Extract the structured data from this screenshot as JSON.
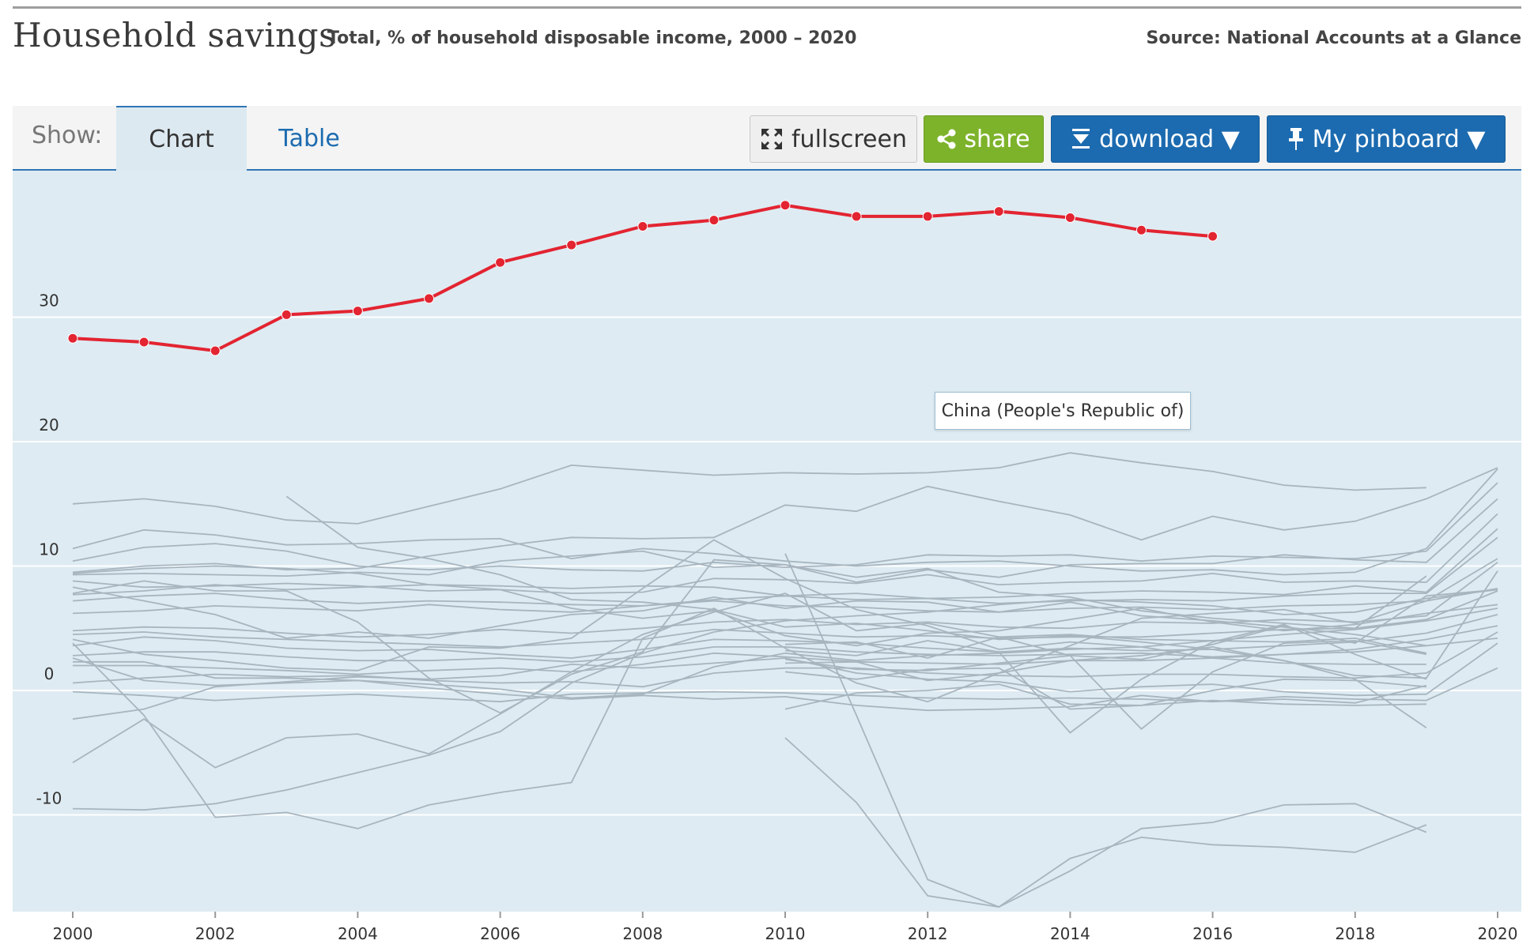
{
  "header": {
    "title": "Household savings",
    "subtitle": "Total, % of household disposable income, 2000 – 2020",
    "source": "Source: National Accounts at a Glance"
  },
  "toolbar": {
    "show_label": "Show:",
    "tabs": [
      {
        "label": "Chart",
        "active": true
      },
      {
        "label": "Table",
        "active": false
      }
    ],
    "fullscreen_label": "fullscreen",
    "share_label": "share",
    "download_label": "download ▼",
    "pinboard_label": "My pinboard ▼",
    "colors": {
      "share": "#7db32b",
      "download": "#1c6bb0",
      "pinboard": "#1c6bb0"
    }
  },
  "tooltip": {
    "text": "China (People's Republic of)"
  },
  "chart_data": {
    "type": "line",
    "title": "Household savings",
    "ylim": [
      -18,
      43
    ],
    "xlim": [
      2000,
      2020
    ],
    "y_ticks": [
      30,
      20,
      10,
      0,
      -10
    ],
    "x_ticks": [
      2000,
      2002,
      2004,
      2006,
      2008,
      2010,
      2012,
      2014,
      2016,
      2018,
      2020
    ],
    "grid": true,
    "highlight_color": "#e32431",
    "background_color": "#deebf2",
    "highlight": {
      "name": "China (People's Republic of)",
      "x": [
        2000,
        2001,
        2002,
        2003,
        2004,
        2005,
        2006,
        2007,
        2008,
        2009,
        2010,
        2011,
        2012,
        2013,
        2014,
        2015,
        2016
      ],
      "values": [
        28.3,
        28.0,
        27.3,
        30.2,
        30.5,
        31.5,
        34.4,
        35.8,
        37.3,
        37.8,
        39.0,
        38.1,
        38.1,
        38.5,
        38.0,
        37.0,
        36.5
      ]
    },
    "series": [
      {
        "values": [
          15.0,
          15.4,
          14.8,
          13.7,
          13.4,
          14.8,
          16.2,
          18.1,
          17.7,
          17.3,
          17.5,
          17.4,
          17.5,
          17.9,
          19.1,
          18.3,
          17.6,
          16.5,
          16.1,
          16.3,
          null
        ]
      },
      {
        "values": [
          11.4,
          12.9,
          12.5,
          11.7,
          11.8,
          12.1,
          12.2,
          10.6,
          11.4,
          11.0,
          10.4,
          10.0,
          10.3,
          10.4,
          10.0,
          9.6,
          9.7,
          9.3,
          9.5,
          11.4,
          17.8
        ]
      },
      {
        "values": [
          10.4,
          11.5,
          11.8,
          11.2,
          10.0,
          9.7,
          10.0,
          9.7,
          9.6,
          10.3,
          9.9,
          10.1,
          10.9,
          10.8,
          10.9,
          10.4,
          10.8,
          10.7,
          10.6,
          11.2,
          16.7
        ]
      },
      {
        "values": [
          9.5,
          10.0,
          10.2,
          9.7,
          9.8,
          10.8,
          11.6,
          12.3,
          12.2,
          12.3,
          14.9,
          14.4,
          16.4,
          15.2,
          14.1,
          12.1,
          14.0,
          12.9,
          13.6,
          15.4,
          17.9
        ]
      },
      {
        "values": [
          9.3,
          9.4,
          9.3,
          9.2,
          9.5,
          9.3,
          10.4,
          10.8,
          11.2,
          9.9,
          10.1,
          8.7,
          9.7,
          9.1,
          10.1,
          10.2,
          10.2,
          10.9,
          10.5,
          10.3,
          15.4
        ]
      },
      {
        "values": [
          8.8,
          8.3,
          8.4,
          8.6,
          8.4,
          8.0,
          8.1,
          7.8,
          7.9,
          9.0,
          8.9,
          8.6,
          9.3,
          8.5,
          8.7,
          8.8,
          9.4,
          8.7,
          8.8,
          8.7,
          14.2
        ]
      },
      {
        "values": [
          7.7,
          8.0,
          8.5,
          8.1,
          8.3,
          8.5,
          8.4,
          8.2,
          8.4,
          8.3,
          7.6,
          7.8,
          7.4,
          7.5,
          7.8,
          8.0,
          7.9,
          7.7,
          8.4,
          7.9,
          13.0
        ]
      },
      {
        "values": [
          7.2,
          7.6,
          7.8,
          7.3,
          7.0,
          7.2,
          7.1,
          6.9,
          6.8,
          7.3,
          7.6,
          7.3,
          7.4,
          7.0,
          7.2,
          7.3,
          7.2,
          7.6,
          7.8,
          7.8,
          12.3
        ]
      },
      {
        "values": [
          6.2,
          6.4,
          6.8,
          6.6,
          6.4,
          6.9,
          6.5,
          6.3,
          6.8,
          7.2,
          6.8,
          6.7,
          6.4,
          6.3,
          6.6,
          6.7,
          6.5,
          6.8,
          6.9,
          7.2,
          10.6
        ]
      },
      {
        "values": [
          4.8,
          5.1,
          5.0,
          4.6,
          4.3,
          4.5,
          4.9,
          4.6,
          5.0,
          5.5,
          5.7,
          5.3,
          5.5,
          5.1,
          5.0,
          5.5,
          5.4,
          5.7,
          5.5,
          6.0,
          10.3
        ]
      },
      {
        "values": [
          4.5,
          4.7,
          4.3,
          4.1,
          3.9,
          3.7,
          3.5,
          3.8,
          4.1,
          4.9,
          4.6,
          4.3,
          4.4,
          4.2,
          4.3,
          4.3,
          4.6,
          4.9,
          5.0,
          5.7,
          8.0
        ]
      },
      {
        "values": [
          3.6,
          4.3,
          4.0,
          3.4,
          3.2,
          3.3,
          2.9,
          2.6,
          3.3,
          4.1,
          4.0,
          3.8,
          3.4,
          3.1,
          3.4,
          3.2,
          3.3,
          3.6,
          3.9,
          4.6,
          6.1
        ]
      },
      {
        "values": [
          2.8,
          3.1,
          3.1,
          2.7,
          2.4,
          2.4,
          2.6,
          2.3,
          2.7,
          3.5,
          3.5,
          3.1,
          2.9,
          2.8,
          2.9,
          3.0,
          2.7,
          2.9,
          3.3,
          4.1,
          5.2
        ]
      },
      {
        "values": [
          2.0,
          2.0,
          1.8,
          1.6,
          1.3,
          1.6,
          1.8,
          1.5,
          2.1,
          3.0,
          2.7,
          2.3,
          2.2,
          2.1,
          2.4,
          2.4,
          2.6,
          2.9,
          3.1,
          3.6,
          4.2
        ]
      },
      {
        "values": [
          0.6,
          1.0,
          1.3,
          1.1,
          1.2,
          0.8,
          0.6,
          0.7,
          0.3,
          1.4,
          1.8,
          1.8,
          1.4,
          1.2,
          1.1,
          1.3,
          1.3,
          1.1,
          1.0,
          1.4,
          4.7
        ]
      },
      {
        "values": [
          -2.3,
          -1.5,
          0.3,
          0.7,
          1.1,
          0.9,
          1.2,
          2.1,
          1.8,
          2.2,
          2.6,
          1.4,
          0.9,
          0.7,
          -0.1,
          0.3,
          0.5,
          -0.1,
          -0.4,
          -0.3,
          3.8
        ]
      },
      {
        "values": [
          -0.1,
          -0.4,
          -0.8,
          -0.5,
          -0.3,
          -0.6,
          -0.9,
          -0.3,
          -0.2,
          -0.1,
          -0.2,
          -0.4,
          -0.6,
          -0.7,
          -0.6,
          -0.7,
          -0.9,
          -0.5,
          -0.7,
          -0.8,
          1.8
        ]
      },
      {
        "values": [
          -5.8,
          -2.3,
          -6.2,
          -3.8,
          -3.5,
          -5.1,
          -1.9,
          1.5,
          4.5,
          6.3,
          7.8,
          4.8,
          5.4,
          4.3,
          2.8,
          2.5,
          3.7,
          5.2,
          3.8,
          7.6,
          8.1
        ]
      },
      {
        "values": [
          -9.5,
          -9.6,
          -9.1,
          -8.0,
          -6.6,
          -5.2,
          -3.3,
          0.6,
          3.0,
          4.7,
          5.6,
          6.0,
          6.3,
          6.9,
          7.3,
          7.1,
          6.8,
          6.1,
          6.3,
          7.4,
          8.1
        ]
      },
      {
        "values": [
          3.8,
          -2.0,
          -10.2,
          -9.8,
          -11.1,
          -9.2,
          -8.2,
          -7.4,
          4.2,
          6.6,
          3.4,
          0.6,
          -0.9,
          1.4,
          3.6,
          5.8,
          6.2,
          6.5,
          5.4,
          7.2,
          8.2
        ]
      },
      {
        "values": [
          9.4,
          9.8,
          10.0,
          9.8,
          9.4,
          8.5,
          8.1,
          6.6,
          5.8,
          6.4,
          4.4,
          3.6,
          4.6,
          4.8,
          5.7,
          6.6,
          5.5,
          4.8,
          5.3,
          6.2,
          6.9
        ]
      },
      {
        "values": [
          2.3,
          2.3,
          1.0,
          1.0,
          0.8,
          0.5,
          0.1,
          -0.6,
          -0.3,
          1.9,
          3.0,
          2.4,
          2.8,
          3.0,
          3.3,
          3.5,
          4.0,
          4.5,
          4.9,
          5.6,
          6.6
        ]
      },
      {
        "values": [
          null,
          null,
          null,
          15.6,
          11.5,
          10.6,
          9.3,
          7.3,
          7.1,
          6.5,
          5.1,
          5.4,
          4.8,
          4.1,
          4.4,
          3.9,
          3.3,
          2.4,
          1.2,
          1.0,
          9.6
        ]
      },
      {
        "values": [
          8.3,
          7.2,
          6.1,
          4.2,
          4.7,
          4.2,
          5.2,
          6.1,
          6.4,
          7.5,
          6.6,
          7.2,
          7.1,
          6.3,
          7.1,
          6.0,
          5.6,
          5.1,
          4.5,
          3.6,
          null
        ]
      },
      {
        "values": [
          4.1,
          2.9,
          2.4,
          1.8,
          1.6,
          3.5,
          3.4,
          4.2,
          8.2,
          12.1,
          9.0,
          6.5,
          5.2,
          3.3,
          3.9,
          3.5,
          2.6,
          2.2,
          2.1,
          2.1,
          null
        ]
      },
      {
        "values": [
          7.8,
          8.8,
          8.0,
          8.0,
          5.5,
          1.0,
          -1.8,
          1.3,
          3.1,
          10.5,
          10.1,
          9.1,
          9.8,
          7.9,
          7.5,
          6.4,
          5.8,
          5.4,
          5.0,
          9.2,
          null
        ]
      },
      {
        "values": [
          2.6,
          0.8,
          0.4,
          0.6,
          0.8,
          0.2,
          -0.3,
          -0.7,
          -0.4,
          -0.7,
          -0.5,
          -1.2,
          -1.6,
          -1.5,
          -1.3,
          -0.4,
          -0.9,
          -0.7,
          -1.0,
          0.4,
          null
        ]
      },
      {
        "values": [
          null,
          null,
          null,
          null,
          null,
          null,
          null,
          null,
          null,
          null,
          -3.8,
          -9.0,
          -16.5,
          -17.4,
          -13.5,
          -11.8,
          -12.4,
          -12.6,
          -13.0,
          -10.8,
          null
        ]
      },
      {
        "values": [
          null,
          null,
          null,
          null,
          null,
          null,
          null,
          null,
          null,
          null,
          11.0,
          -2.0,
          -15.2,
          -17.4,
          -14.5,
          -11.1,
          -10.6,
          -9.2,
          -9.1,
          -11.4,
          null
        ]
      },
      {
        "values": [
          null,
          null,
          null,
          null,
          null,
          null,
          null,
          null,
          null,
          null,
          -1.5,
          -0.2,
          0.0,
          0.5,
          -1.1,
          -1.2,
          -0.8,
          -1.1,
          -1.2,
          -1.1,
          null
        ]
      },
      {
        "values": [
          null,
          null,
          null,
          null,
          null,
          null,
          null,
          null,
          null,
          null,
          3.2,
          2.8,
          4.0,
          3.1,
          -3.4,
          0.9,
          3.9,
          5.3,
          2.9,
          0.9,
          null
        ]
      },
      {
        "values": [
          null,
          null,
          null,
          null,
          null,
          null,
          null,
          null,
          null,
          null,
          2.5,
          1.7,
          1.6,
          2.2,
          2.8,
          -3.1,
          1.5,
          3.8,
          4.0,
          2.9,
          null
        ]
      },
      {
        "values": [
          null,
          null,
          null,
          null,
          null,
          null,
          null,
          null,
          null,
          null,
          2.2,
          2.3,
          0.8,
          1.4,
          2.4,
          2.8,
          3.5,
          2.4,
          0.9,
          -3.0,
          null
        ]
      },
      {
        "values": [
          null,
          null,
          null,
          null,
          null,
          null,
          null,
          null,
          null,
          null,
          1.5,
          0.9,
          1.7,
          1.8,
          -1.5,
          -1.2,
          0.0,
          0.9,
          0.8,
          0.3,
          null
        ]
      },
      {
        "values": [
          null,
          null,
          null,
          null,
          null,
          null,
          null,
          null,
          null,
          null,
          3.7,
          3.9,
          2.6,
          4.3,
          4.5,
          4.1,
          4.0,
          3.9,
          4.2,
          3.0,
          null
        ]
      }
    ]
  }
}
